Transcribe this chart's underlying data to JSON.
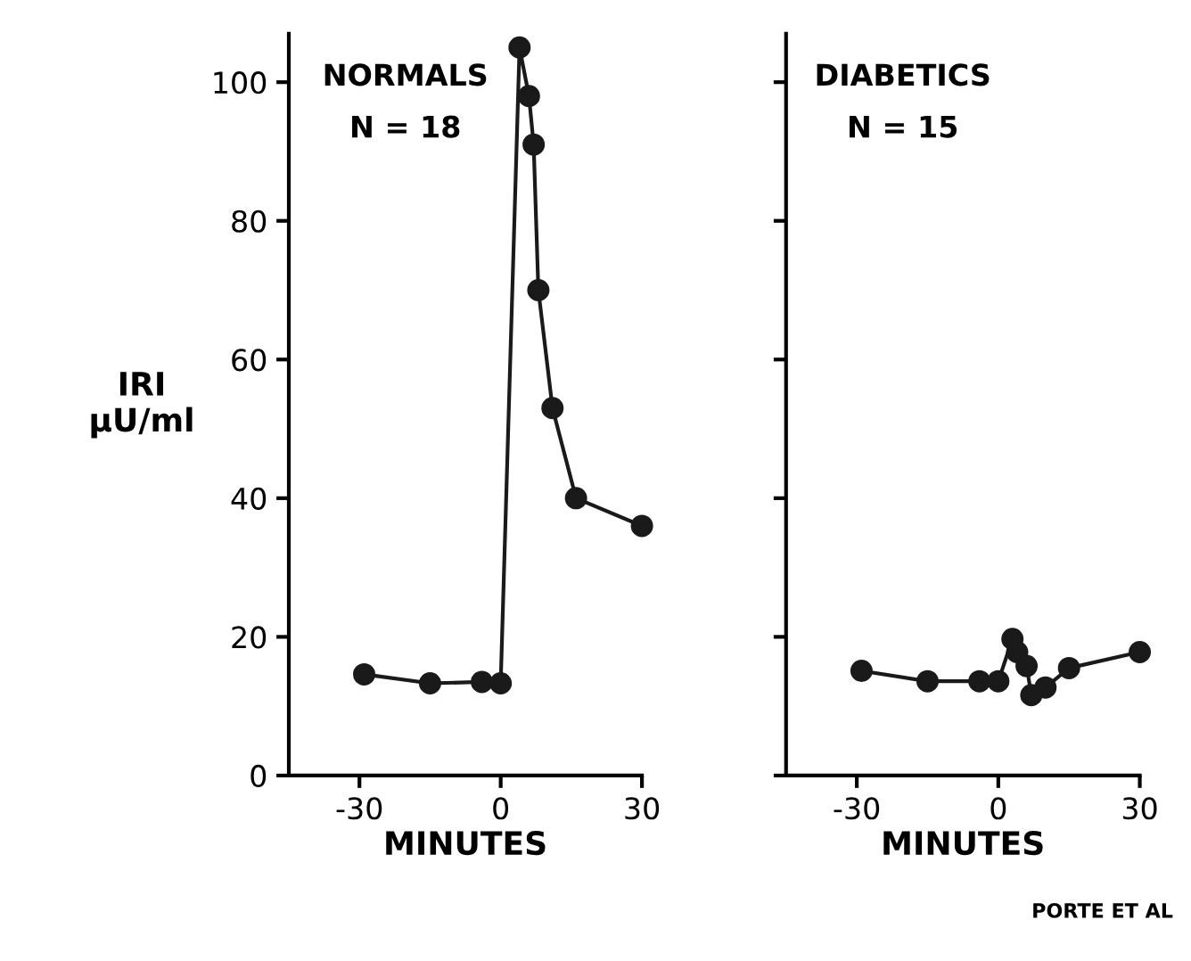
{
  "chart_data": [
    {
      "type": "line",
      "title": "NORMALS",
      "subtitle": "N = 18",
      "ylabel": "IRI\nμU/ml",
      "xlabel": "MINUTES",
      "xlim": [
        -45,
        30
      ],
      "xticks": [
        {
          "value": -30,
          "label": "-30"
        },
        0,
        30
      ],
      "ylim": [
        0,
        107
      ],
      "yticks": [
        0,
        20,
        40,
        60,
        80,
        100
      ],
      "marker": "circle",
      "grid": false,
      "legend": false,
      "series": [
        {
          "color": "#1a1a1a",
          "x": [
            -29,
            -15,
            -4,
            0,
            4,
            6,
            7,
            8,
            11,
            16,
            30
          ],
          "values": [
            14.6,
            13.3,
            13.5,
            13.3,
            105,
            98,
            91,
            70,
            53,
            40,
            36
          ]
        }
      ]
    },
    {
      "type": "line",
      "title": "DIABETICS",
      "subtitle": "N = 15",
      "xlabel": "MINUTES",
      "xlim": [
        -45,
        30
      ],
      "xticks": [
        {
          "value": -30,
          "label": "-30"
        },
        0,
        30
      ],
      "ylim": [
        0,
        107
      ],
      "yticks": [
        0,
        20,
        40,
        60,
        80,
        100
      ],
      "tick_labels": "x",
      "marker": "circle",
      "grid": false,
      "legend": false,
      "annotations": [
        "PORTE ET AL"
      ],
      "series": [
        {
          "color": "#1a1a1a",
          "x": [
            -29,
            -15,
            -4,
            0,
            3,
            4,
            6,
            7,
            10,
            15,
            30
          ],
          "values": [
            15.1,
            13.6,
            13.6,
            13.6,
            19.7,
            17.8,
            15.8,
            11.6,
            12.7,
            15.5,
            17.8
          ]
        }
      ]
    }
  ]
}
